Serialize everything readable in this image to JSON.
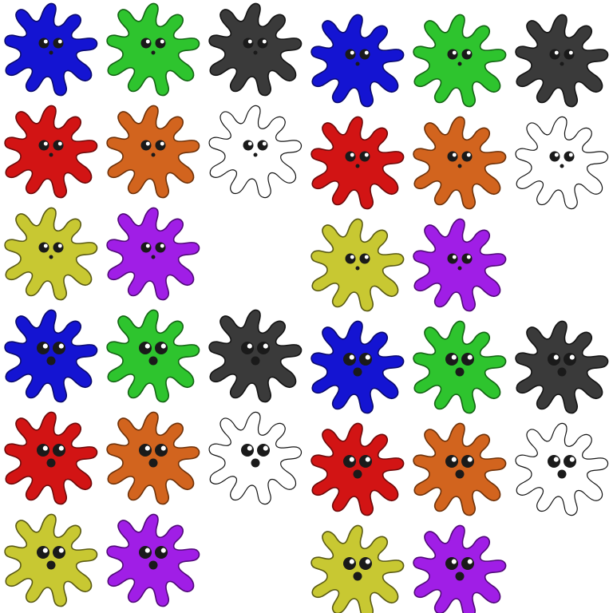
{
  "sheet": {
    "background": "#ffffff",
    "outline_color": "#1a1a1a",
    "eye_color": "#1a1a1a",
    "eye_highlight": "#ffffff"
  },
  "palette": {
    "blue": {
      "fill": "#1414d2",
      "outline": "#0a0a6e"
    },
    "green": {
      "fill": "#2ec42e",
      "outline": "#146414"
    },
    "black": {
      "fill": "#3a3a3a",
      "outline": "#141414"
    },
    "red": {
      "fill": "#d21414",
      "outline": "#6e0a0a"
    },
    "orange": {
      "fill": "#d2641e",
      "outline": "#6e320a"
    },
    "white": {
      "fill": "#ffffff",
      "outline": "#141414"
    },
    "yellow": {
      "fill": "#c8c832",
      "outline": "#5a5a14"
    },
    "purple": {
      "fill": "#a01ee6",
      "outline": "#500a78"
    }
  },
  "groups": [
    {
      "name": "variant-a",
      "face": "small"
    },
    {
      "name": "variant-b",
      "face": "small"
    },
    {
      "name": "variant-c",
      "face": "large"
    },
    {
      "name": "variant-d",
      "face": "large"
    }
  ],
  "group_colors": [
    [
      "blue",
      "green",
      "black"
    ],
    [
      "red",
      "orange",
      "white"
    ],
    [
      "yellow",
      "purple"
    ]
  ],
  "sprite_count": 32
}
